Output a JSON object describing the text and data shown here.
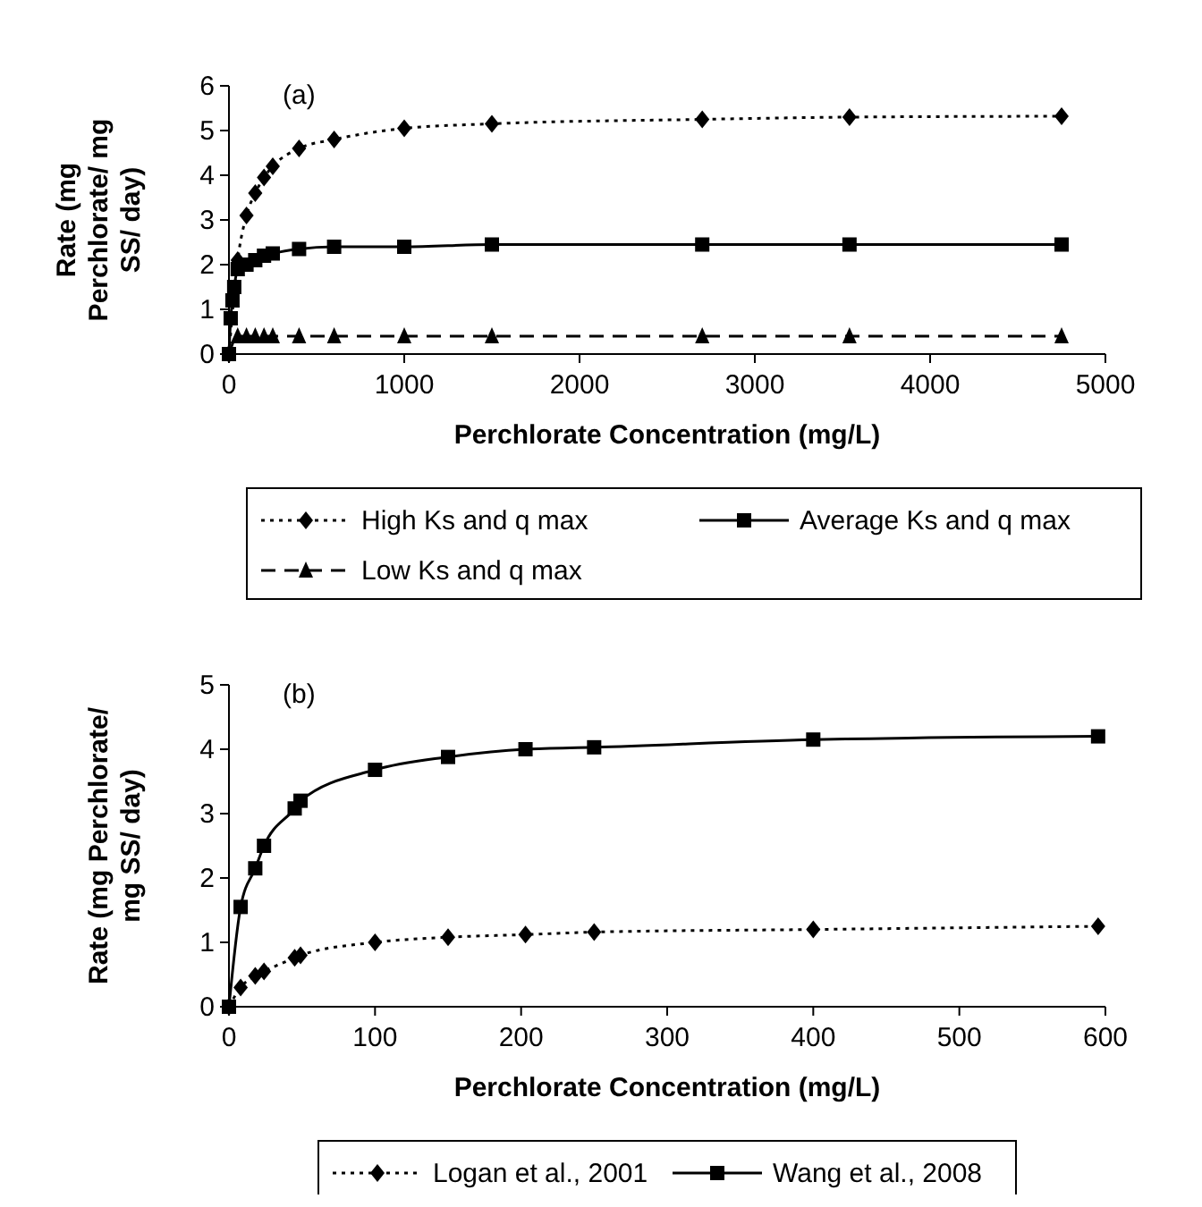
{
  "chart_data": [
    {
      "type": "line",
      "annotations": [
        "(a)"
      ],
      "xlabel": "Perchlorate Concentration (mg/L)",
      "ylabel": "Rate (mg Perchlorate/ mg SS/ day)",
      "xlim": [
        0,
        5000
      ],
      "xticks": [
        0,
        1000,
        2000,
        3000,
        4000,
        5000
      ],
      "ylim": [
        0,
        6
      ],
      "yticks": [
        0,
        1,
        2,
        3,
        4,
        5,
        6
      ],
      "legend": "bottom",
      "grid": false,
      "series": [
        {
          "name": "High Ks and q max",
          "color": "#000000",
          "marker": "diamond",
          "line_style": "dotted",
          "x": [
            0,
            50,
            100,
            150,
            200,
            250,
            400,
            600,
            1000,
            1500,
            2700,
            3540,
            4750
          ],
          "values": [
            0,
            2.1,
            3.1,
            3.6,
            3.95,
            4.2,
            4.6,
            4.8,
            5.05,
            5.15,
            5.25,
            5.3,
            5.32
          ]
        },
        {
          "name": "Average Ks and q max",
          "color": "#000000",
          "marker": "square",
          "line_style": "solid",
          "x": [
            0,
            10,
            20,
            30,
            50,
            100,
            150,
            200,
            250,
            400,
            600,
            1000,
            1500,
            2700,
            3540,
            4750
          ],
          "values": [
            0,
            0.8,
            1.2,
            1.5,
            1.9,
            2.0,
            2.1,
            2.2,
            2.25,
            2.35,
            2.4,
            2.4,
            2.45,
            2.45,
            2.45,
            2.45
          ]
        },
        {
          "name": "Low Ks and q max",
          "color": "#000000",
          "marker": "triangle",
          "line_style": "dashed",
          "x": [
            0,
            50,
            100,
            150,
            200,
            250,
            400,
            600,
            1000,
            1500,
            2700,
            3540,
            4750
          ],
          "values": [
            0,
            0.4,
            0.4,
            0.4,
            0.4,
            0.4,
            0.4,
            0.4,
            0.4,
            0.4,
            0.4,
            0.4,
            0.4
          ]
        }
      ]
    },
    {
      "type": "line",
      "annotations": [
        "(b)"
      ],
      "xlabel": "Perchlorate Concentration (mg/L)",
      "ylabel": "Rate (mg Perchlorate/ mg SS/ day)",
      "xlim": [
        0,
        600
      ],
      "xticks": [
        0,
        100,
        200,
        300,
        400,
        500,
        600
      ],
      "ylim": [
        0,
        5
      ],
      "yticks": [
        0,
        1,
        2,
        3,
        4,
        5
      ],
      "legend": "bottom",
      "grid": false,
      "series": [
        {
          "name": "Logan et al., 2001",
          "color": "#000000",
          "marker": "diamond",
          "line_style": "dotted",
          "x": [
            0,
            8,
            18,
            24,
            45,
            49,
            100,
            150,
            203,
            250,
            400,
            595
          ],
          "values": [
            0,
            0.3,
            0.48,
            0.55,
            0.76,
            0.8,
            1.0,
            1.08,
            1.12,
            1.16,
            1.2,
            1.25
          ]
        },
        {
          "name": "Wang et al., 2008",
          "color": "#000000",
          "marker": "square",
          "line_style": "solid",
          "x": [
            0,
            8,
            18,
            24,
            45,
            49,
            100,
            150,
            203,
            250,
            400,
            595
          ],
          "values": [
            0,
            1.55,
            2.15,
            2.5,
            3.08,
            3.2,
            3.68,
            3.88,
            4.0,
            4.03,
            4.15,
            4.2
          ]
        }
      ]
    }
  ]
}
